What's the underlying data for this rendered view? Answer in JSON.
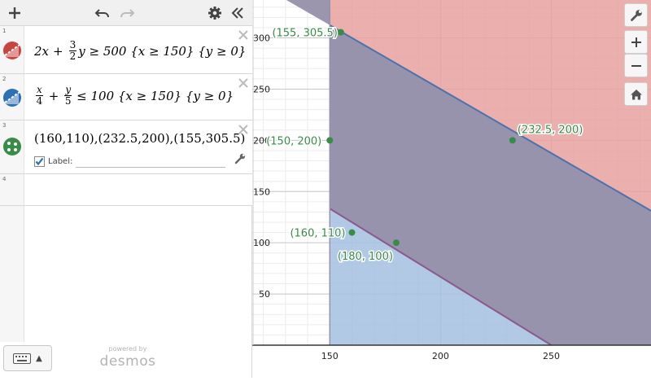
{
  "toolbar": {
    "add": "+",
    "undo": "undo",
    "redo": "redo",
    "settings": "settings",
    "collapse": "«"
  },
  "expressions": [
    {
      "index": "1",
      "color": "#c74440",
      "parts": {
        "t1": "2x",
        "plus": "+",
        "frac_num": "3",
        "frac_den": "2",
        "t2": "y ≥ 500 {x ≥ 150} {y ≥ 0}"
      }
    },
    {
      "index": "2",
      "color": "#2d70b3",
      "parts": {
        "f1_num": "x",
        "f1_den": "4",
        "plus": "+",
        "f2_num": "y",
        "f2_den": "5",
        "t2": "≤ 100 {x ≥ 150} {y ≥ 0}"
      }
    },
    {
      "index": "3",
      "color": "#388c46",
      "text": "(160,110),(232.5,200),(155,305.5)",
      "label_checkbox_text": "Label:"
    },
    {
      "index": "4"
    }
  ],
  "footer": {
    "powered_by": "powered by",
    "brand": "desmos",
    "keyboard_caret": "▲"
  },
  "colors": {
    "red_region": "#e7a1a0",
    "blue_region": "#a5bfe0",
    "overlap_region": "#9690aa",
    "blue_line": "#4a72ad",
    "purple_line": "#8a5a8a",
    "point_color": "#388c46",
    "grid_minor": "#ececec",
    "grid_major": "#c8c8c8"
  },
  "axis": {
    "x_ticks": [
      "150",
      "200",
      "250"
    ],
    "y_ticks": [
      "50",
      "100",
      "150",
      "200",
      "250",
      "300"
    ]
  },
  "chart_data": {
    "type": "scatter",
    "xlim": [
      115,
      295
    ],
    "ylim": [
      0,
      337
    ],
    "points": [
      {
        "x": 155,
        "y": 305.5,
        "label": "(155, 305.5)"
      },
      {
        "x": 150,
        "y": 200,
        "label": "(150, 200)"
      },
      {
        "x": 232.5,
        "y": 200,
        "label": "(232.5, 200)"
      },
      {
        "x": 160,
        "y": 110,
        "label": "(160, 110)"
      },
      {
        "x": 180,
        "y": 100,
        "label": "(180, 100)"
      }
    ],
    "grid": true
  }
}
